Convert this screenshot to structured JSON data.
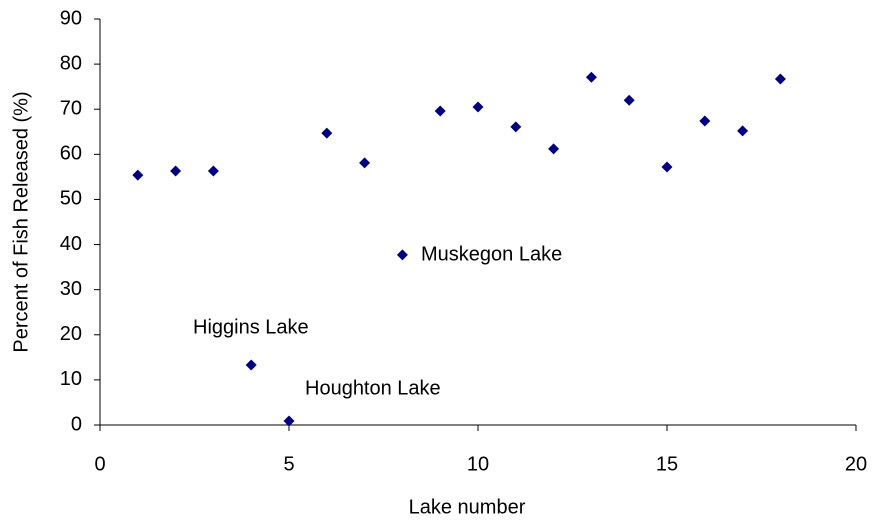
{
  "chart_data": {
    "type": "scatter",
    "x_label": "Lake number",
    "y_label": "Percent of Fish Released (%)",
    "x": [
      1,
      2,
      3,
      4,
      5,
      6,
      7,
      8,
      9,
      10,
      11,
      12,
      13,
      14,
      15,
      16,
      17,
      18
    ],
    "values": [
      55.4,
      56.3,
      56.3,
      13.3,
      0.9,
      64.7,
      58.1,
      37.7,
      69.6,
      70.5,
      66.1,
      61.2,
      77.1,
      72.0,
      57.2,
      67.4,
      65.2,
      76.7
    ],
    "color": "#000080",
    "xlim": [
      0,
      20
    ],
    "xticks": [
      0,
      5,
      10,
      15,
      20
    ],
    "ylim": [
      0,
      90
    ],
    "yticks": [
      0,
      10,
      20,
      30,
      40,
      50,
      60,
      70,
      80,
      90
    ],
    "grid": false,
    "annotations": [
      "Higgins Lake",
      "Houghton Lake",
      "Muskegon Lake"
    ]
  }
}
